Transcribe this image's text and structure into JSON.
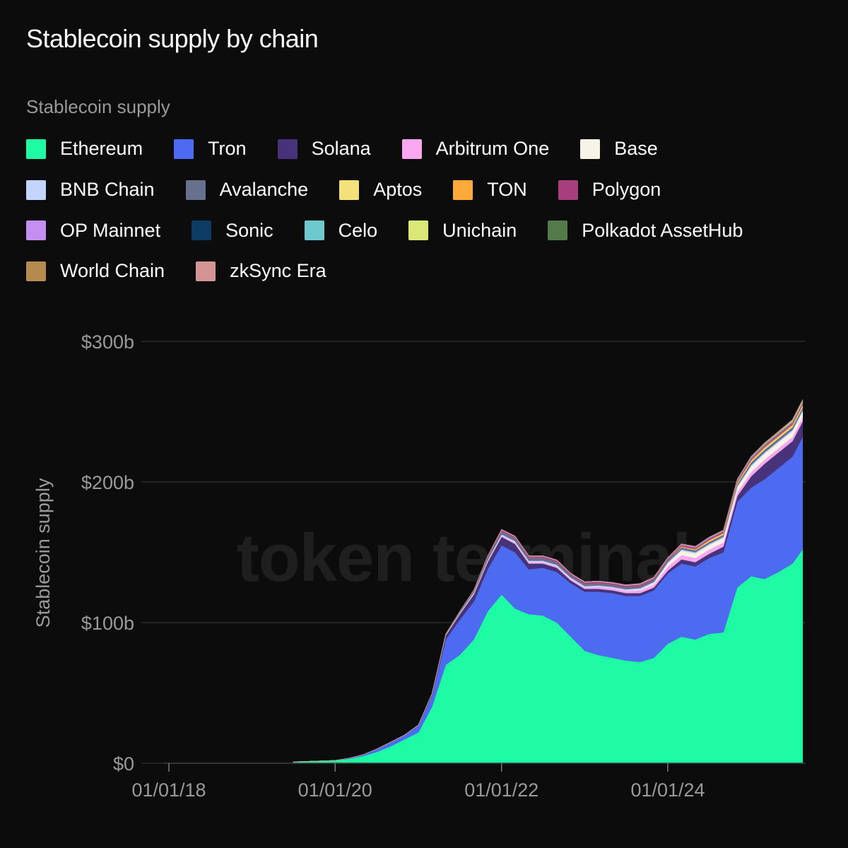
{
  "title": "Stablecoin supply by chain",
  "watermark": "token terminal_",
  "chart_data": {
    "type": "area",
    "stacked": true,
    "title": "Stablecoin supply by chain",
    "legend_title": "Stablecoin supply",
    "ylabel": "Stablecoin supply",
    "xlabel": "",
    "ylim": [
      0,
      300
    ],
    "y_unit": "billion USD",
    "y_ticks": [
      {
        "value": 0,
        "label": "$0"
      },
      {
        "value": 100,
        "label": "$100b"
      },
      {
        "value": 200,
        "label": "$200b"
      },
      {
        "value": 300,
        "label": "$300b"
      }
    ],
    "x_ticks": [
      {
        "value": "2018-01-01",
        "label": "01/01/18"
      },
      {
        "value": "2020-01-01",
        "label": "01/01/20"
      },
      {
        "value": "2022-01-01",
        "label": "01/01/22"
      },
      {
        "value": "2024-01-01",
        "label": "01/01/24"
      }
    ],
    "xlim": [
      "2017-12-01",
      "2025-09-01"
    ],
    "grid": true,
    "legend_position": "top",
    "x": [
      "2019-07-01",
      "2019-10-01",
      "2020-01-01",
      "2020-03-01",
      "2020-05-01",
      "2020-07-01",
      "2020-09-01",
      "2020-11-01",
      "2021-01-01",
      "2021-03-01",
      "2021-05-01",
      "2021-07-01",
      "2021-09-01",
      "2021-11-01",
      "2022-01-01",
      "2022-03-01",
      "2022-05-01",
      "2022-07-01",
      "2022-09-01",
      "2022-11-01",
      "2023-01-01",
      "2023-03-01",
      "2023-05-01",
      "2023-07-01",
      "2023-09-01",
      "2023-11-01",
      "2024-01-01",
      "2024-03-01",
      "2024-05-01",
      "2024-07-01",
      "2024-09-01",
      "2024-11-01",
      "2025-01-01",
      "2025-03-01",
      "2025-05-01",
      "2025-07-01",
      "2025-08-15"
    ],
    "series": [
      {
        "name": "Ethereum",
        "color": "#1dfba4",
        "values": [
          1,
          1.5,
          2,
          3,
          5,
          8,
          12,
          17,
          22,
          40,
          70,
          77,
          88,
          108,
          120,
          110,
          106,
          105,
          100,
          90,
          80,
          77,
          75,
          73,
          72,
          75,
          85,
          90,
          88,
          92,
          93,
          125,
          133,
          131,
          136,
          142,
          152
        ]
      },
      {
        "name": "Tron",
        "color": "#4c6bf0",
        "values": [
          0,
          0,
          0,
          0.5,
          1,
          2,
          3,
          3,
          5,
          8,
          18,
          25,
          27,
          30,
          35,
          40,
          32,
          34,
          36,
          38,
          42,
          45,
          46,
          46,
          47,
          48,
          50,
          52,
          52,
          54,
          57,
          61,
          63,
          71,
          74,
          76,
          80
        ]
      },
      {
        "name": "Solana",
        "color": "#46337a",
        "values": [
          0,
          0,
          0,
          0,
          0,
          0,
          0,
          0,
          0.3,
          1,
          3,
          4,
          5,
          5,
          6,
          6,
          4,
          3,
          3,
          2,
          2,
          2,
          2,
          2,
          2,
          2,
          2,
          3,
          3,
          3,
          4,
          4,
          8,
          11,
          11,
          11,
          11
        ]
      },
      {
        "name": "Arbitrum One",
        "color": "#f9a8f0",
        "values": [
          0,
          0,
          0,
          0,
          0,
          0,
          0,
          0,
          0,
          0,
          0,
          0,
          0.3,
          0.5,
          0.8,
          1,
          1,
          1,
          1,
          1,
          1,
          1.5,
          1.5,
          1.5,
          2,
          2,
          3,
          3,
          3,
          3,
          3,
          3,
          3,
          3,
          3,
          3,
          3
        ]
      },
      {
        "name": "Base",
        "color": "#f7f3e6",
        "values": [
          0,
          0,
          0,
          0,
          0,
          0,
          0,
          0,
          0,
          0,
          0,
          0,
          0,
          0,
          0,
          0,
          0,
          0,
          0,
          0,
          0,
          0,
          0,
          0.2,
          0.5,
          1,
          2,
          3,
          3,
          3,
          3,
          3,
          4,
          4,
          4,
          4,
          4
        ]
      },
      {
        "name": "BNB Chain",
        "color": "#c2d5fc",
        "values": [
          0,
          0,
          0,
          0,
          0,
          0,
          0,
          0,
          0,
          0.3,
          0.5,
          0.8,
          1,
          1,
          1,
          1,
          1,
          1,
          1,
          1,
          1,
          1,
          1,
          1,
          1,
          1,
          1,
          1,
          1,
          1,
          1,
          1,
          1,
          1,
          1,
          1,
          1
        ]
      },
      {
        "name": "Avalanche",
        "color": "#65718d",
        "values": [
          0,
          0,
          0,
          0,
          0,
          0,
          0,
          0,
          0,
          0,
          0,
          0.5,
          1,
          1.5,
          2,
          2,
          2,
          2,
          2,
          1.5,
          1.5,
          1.5,
          1.5,
          1.5,
          1.5,
          1.5,
          1.5,
          1.5,
          1.5,
          1.5,
          1.5,
          1.5,
          2,
          2,
          2,
          2,
          2
        ]
      },
      {
        "name": "Aptos",
        "color": "#f3e17c",
        "values": [
          0,
          0,
          0,
          0,
          0,
          0,
          0,
          0,
          0,
          0,
          0,
          0,
          0,
          0,
          0,
          0,
          0,
          0,
          0,
          0,
          0,
          0,
          0,
          0,
          0,
          0,
          0,
          0.2,
          0.3,
          0.5,
          0.5,
          0.5,
          0.8,
          1,
          1,
          1,
          1
        ]
      },
      {
        "name": "TON",
        "color": "#fdaa38",
        "values": [
          0,
          0,
          0,
          0,
          0,
          0,
          0,
          0,
          0,
          0,
          0,
          0,
          0,
          0,
          0,
          0,
          0,
          0,
          0,
          0,
          0,
          0,
          0,
          0,
          0,
          0,
          0,
          0.5,
          0.5,
          0.8,
          0.8,
          0.8,
          0.8,
          0.8,
          0.8,
          0.8,
          0.8
        ]
      },
      {
        "name": "Polygon",
        "color": "#a73f7d",
        "values": [
          0,
          0,
          0,
          0,
          0,
          0,
          0,
          0,
          0,
          0,
          0.3,
          0.5,
          0.8,
          1,
          1,
          1,
          1,
          1,
          1,
          1,
          1,
          1,
          1,
          1,
          1,
          1,
          1,
          1,
          1,
          1,
          1,
          1,
          1,
          1,
          1,
          1,
          1
        ]
      },
      {
        "name": "OP Mainnet",
        "color": "#c48ff0",
        "values": [
          0,
          0,
          0,
          0,
          0,
          0,
          0,
          0,
          0,
          0,
          0,
          0,
          0,
          0.3,
          0.5,
          0.5,
          0.5,
          0.5,
          0.5,
          0.5,
          0.5,
          0.5,
          0.5,
          0.5,
          0.5,
          0.5,
          0.5,
          0.5,
          0.5,
          0.5,
          0.5,
          0.5,
          0.5,
          0.5,
          0.5,
          0.5,
          0.5
        ]
      },
      {
        "name": "Sonic",
        "color": "#0c3b63",
        "values": [
          0,
          0,
          0,
          0,
          0,
          0,
          0,
          0,
          0,
          0,
          0,
          0,
          0,
          0,
          0,
          0,
          0,
          0,
          0,
          0,
          0,
          0,
          0,
          0,
          0,
          0,
          0,
          0,
          0,
          0,
          0,
          0,
          0.2,
          0.3,
          0.3,
          0.3,
          0.3
        ]
      },
      {
        "name": "Celo",
        "color": "#6ec9cf",
        "values": [
          0,
          0,
          0,
          0,
          0,
          0,
          0,
          0,
          0,
          0,
          0,
          0,
          0,
          0,
          0,
          0,
          0,
          0,
          0,
          0,
          0,
          0,
          0,
          0,
          0,
          0,
          0,
          0,
          0.1,
          0.2,
          0.2,
          0.3,
          0.3,
          0.3,
          0.3,
          0.3,
          0.3
        ]
      },
      {
        "name": "Unichain",
        "color": "#dbe776",
        "values": [
          0,
          0,
          0,
          0,
          0,
          0,
          0,
          0,
          0,
          0,
          0,
          0,
          0,
          0,
          0,
          0,
          0,
          0,
          0,
          0,
          0,
          0,
          0,
          0,
          0,
          0,
          0,
          0,
          0,
          0,
          0,
          0,
          0.1,
          0.3,
          0.5,
          0.7,
          0.8
        ]
      },
      {
        "name": "Polkadot AssetHub",
        "color": "#557a4a",
        "values": [
          0,
          0,
          0,
          0,
          0,
          0,
          0,
          0,
          0,
          0,
          0,
          0,
          0,
          0,
          0,
          0,
          0,
          0,
          0,
          0,
          0,
          0,
          0,
          0,
          0.1,
          0.1,
          0.1,
          0.1,
          0.1,
          0.1,
          0.1,
          0.1,
          0.1,
          0.1,
          0.1,
          0.1,
          0.1
        ]
      },
      {
        "name": "World Chain",
        "color": "#b58a4e",
        "values": [
          0,
          0,
          0,
          0,
          0,
          0,
          0,
          0,
          0,
          0,
          0,
          0,
          0,
          0,
          0,
          0,
          0,
          0,
          0,
          0,
          0,
          0,
          0,
          0,
          0,
          0,
          0,
          0,
          0,
          0,
          0,
          0.1,
          0.2,
          0.3,
          0.3,
          0.4,
          0.5
        ]
      },
      {
        "name": "zkSync Era",
        "color": "#d49494",
        "values": [
          0,
          0,
          0,
          0,
          0,
          0,
          0,
          0,
          0,
          0,
          0,
          0,
          0,
          0,
          0,
          0,
          0,
          0,
          0,
          0,
          0,
          0,
          0.1,
          0.2,
          0.2,
          0.2,
          0.2,
          0.2,
          0.2,
          0.2,
          0.2,
          0.2,
          0.2,
          0.2,
          0.2,
          0.2,
          0.2
        ]
      }
    ]
  }
}
